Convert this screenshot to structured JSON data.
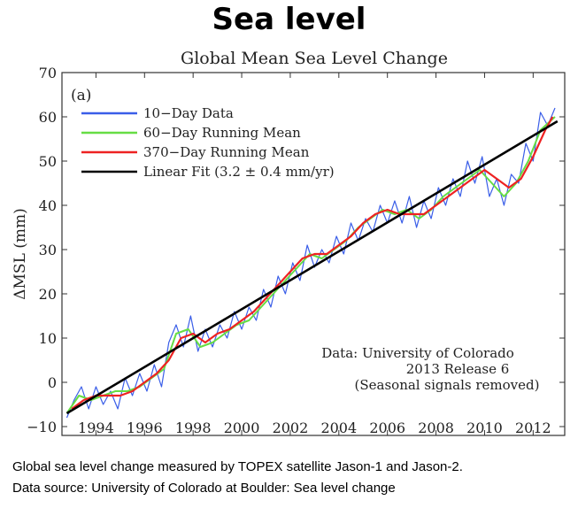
{
  "page": {
    "heading": "Sea level",
    "caption_lines": [
      "Global sea level change measured by TOPEX satellite Jason-1 and Jason-2.",
      "Data source: University of Colorado at Boulder: Sea level change"
    ]
  },
  "chart_data": {
    "type": "line",
    "title": "Global Mean Sea Level Change",
    "panel_label": "(a)",
    "xlabel": "",
    "ylabel": "ΔMSL (mm)",
    "xlim": [
      1992.6,
      2013.3
    ],
    "ylim": [
      -12,
      70
    ],
    "x_ticks": [
      1994,
      1996,
      1998,
      2000,
      2002,
      2004,
      2006,
      2008,
      2010,
      2012
    ],
    "y_ticks": [
      -10,
      0,
      10,
      20,
      30,
      40,
      50,
      60,
      70
    ],
    "grid": false,
    "legend_position": "top-left",
    "annotation_lines": [
      "Data: University of Colorado",
      "2013 Release 6",
      "(Seasonal signals removed)"
    ],
    "series": [
      {
        "name": "10−Day Data",
        "color": "#3a5ee8",
        "x": [
          1992.8,
          1993.1,
          1993.4,
          1993.7,
          1994.0,
          1994.3,
          1994.6,
          1994.9,
          1995.2,
          1995.5,
          1995.8,
          1996.1,
          1996.4,
          1996.7,
          1997.0,
          1997.3,
          1997.6,
          1997.9,
          1998.2,
          1998.5,
          1998.8,
          1999.1,
          1999.4,
          1999.7,
          2000.0,
          2000.3,
          2000.6,
          2000.9,
          2001.2,
          2001.5,
          2001.8,
          2002.1,
          2002.4,
          2002.7,
          2003.0,
          2003.3,
          2003.6,
          2003.9,
          2004.2,
          2004.5,
          2004.8,
          2005.1,
          2005.4,
          2005.7,
          2006.0,
          2006.3,
          2006.6,
          2006.9,
          2007.2,
          2007.5,
          2007.8,
          2008.1,
          2008.4,
          2008.7,
          2009.0,
          2009.3,
          2009.6,
          2009.9,
          2010.2,
          2010.5,
          2010.8,
          2011.1,
          2011.4,
          2011.7,
          2012.0,
          2012.3,
          2012.6,
          2012.9
        ],
        "y": [
          -8,
          -4,
          -1,
          -6,
          -1,
          -5,
          -2,
          -6,
          1,
          -3,
          2,
          -2,
          4,
          -1,
          9,
          13,
          8,
          15,
          7,
          12,
          8,
          13,
          10,
          16,
          12,
          17,
          14,
          21,
          17,
          24,
          20,
          27,
          23,
          31,
          26,
          30,
          27,
          33,
          29,
          36,
          32,
          37,
          34,
          40,
          36,
          41,
          36,
          42,
          35,
          41,
          37,
          44,
          40,
          46,
          42,
          50,
          45,
          51,
          42,
          46,
          40,
          47,
          45,
          54,
          50,
          61,
          58,
          62
        ]
      },
      {
        "name": "60−Day Running Mean",
        "color": "#66dd44",
        "x": [
          1992.8,
          1993.3,
          1993.8,
          1994.3,
          1994.8,
          1995.3,
          1995.8,
          1996.3,
          1996.8,
          1997.3,
          1997.8,
          1998.3,
          1998.8,
          1999.3,
          1999.8,
          2000.3,
          2000.8,
          2001.3,
          2001.8,
          2002.3,
          2002.8,
          2003.3,
          2003.8,
          2004.3,
          2004.8,
          2005.3,
          2005.8,
          2006.3,
          2006.8,
          2007.3,
          2007.8,
          2008.3,
          2008.8,
          2009.3,
          2009.8,
          2010.3,
          2010.8,
          2011.3,
          2011.8,
          2012.3,
          2012.9
        ],
        "y": [
          -7,
          -3,
          -4,
          -3,
          -2,
          -2,
          -1,
          1,
          3,
          11,
          12,
          8,
          9,
          11,
          13,
          14,
          17,
          20,
          23,
          26,
          29,
          28,
          30,
          32,
          35,
          37,
          39,
          38,
          39,
          37,
          39,
          42,
          44,
          46,
          48,
          45,
          42,
          45,
          50,
          57,
          60
        ]
      },
      {
        "name": "370−Day Running Mean",
        "color": "#ee2222",
        "x": [
          1993.0,
          1993.5,
          1994.0,
          1994.5,
          1995.0,
          1995.5,
          1996.0,
          1996.5,
          1997.0,
          1997.5,
          1998.0,
          1998.5,
          1999.0,
          1999.5,
          2000.0,
          2000.5,
          2001.0,
          2001.5,
          2002.0,
          2002.5,
          2003.0,
          2003.5,
          2004.0,
          2004.5,
          2005.0,
          2005.5,
          2006.0,
          2006.5,
          2007.0,
          2007.5,
          2008.0,
          2008.5,
          2009.0,
          2009.5,
          2010.0,
          2010.5,
          2011.0,
          2011.5,
          2012.0,
          2012.5,
          2012.8
        ],
        "y": [
          -6,
          -4,
          -3,
          -3,
          -3,
          -2,
          0,
          2,
          5,
          10,
          11,
          9,
          11,
          12,
          14,
          16,
          19,
          22,
          25,
          28,
          29,
          29,
          31,
          33,
          36,
          38,
          39,
          38,
          38,
          38,
          40,
          42,
          44,
          46,
          48,
          46,
          44,
          46,
          51,
          57,
          60
        ]
      },
      {
        "name": "Linear Fit (3.2 ± 0.4 mm/yr)",
        "color": "#000000",
        "x": [
          1992.8,
          2013.0
        ],
        "y": [
          -7,
          59
        ]
      }
    ]
  }
}
